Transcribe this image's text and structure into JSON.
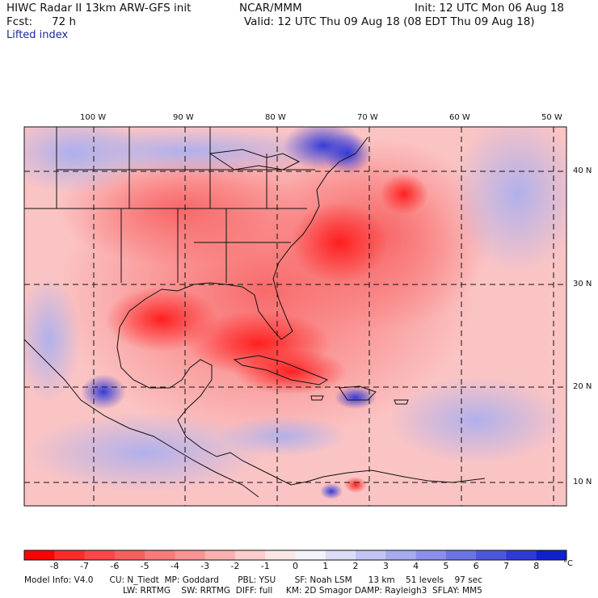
{
  "header": {
    "title": "HIWC Radar II 13km ARW-GFS init",
    "source": "NCAR/MMM",
    "init": "Init: 12 UTC Mon 06 Aug 18",
    "fcst_label": "Fcst:",
    "fcst_value": "72 h",
    "valid": "Valid: 12 UTC Thu 09 Aug 18 (08 EDT Thu 09 Aug 18)",
    "field": "Lifted index"
  },
  "map": {
    "lon_labels": [
      "100 W",
      "90 W",
      "80 W",
      "70 W",
      "60 W",
      "50 W"
    ],
    "lat_labels": [
      "40 N",
      "30 N",
      "20 N",
      "10 N"
    ],
    "colors": {
      "strong_neg": "#ff1a1a",
      "neg": "#f86868",
      "weak_neg": "#fbb0b0",
      "neutral": "#f7f2f8",
      "weak_pos": "#c8c8f4",
      "pos": "#7a82e8",
      "strong_pos": "#2b35d8",
      "coast": "#111111",
      "grid": "#111111"
    }
  },
  "colorbar": {
    "labels": [
      "-8",
      "-7",
      "-6",
      "-5",
      "-4",
      "-3",
      "-2",
      "-1",
      "0",
      "1",
      "2",
      "3",
      "4",
      "5",
      "6",
      "7",
      "8"
    ],
    "unit": "°C",
    "colors": [
      "#ff0000",
      "#ff2a2a",
      "#ff4545",
      "#f85f5f",
      "#f87a7a",
      "#fa9393",
      "#fbb0b0",
      "#fdcccc",
      "#fbe6e6",
      "#f3f3fb",
      "#dcdcf7",
      "#c2c4f2",
      "#a6aaee",
      "#8a90ea",
      "#6c74e4",
      "#4d57dd",
      "#2f3ad6",
      "#1020cf"
    ]
  },
  "model_info": {
    "line1": "Model Info: V4.0      CU: N_Tiedt  MP: Goddard       PBL: YSU       SF: Noah LSM      13 km    51 levels    97 sec",
    "line2": "LW: RRTMG    SW: RRTMG  DIFF: full     KM: 2D Smagor DAMP: Rayleigh3  SFLAY: MM5"
  }
}
